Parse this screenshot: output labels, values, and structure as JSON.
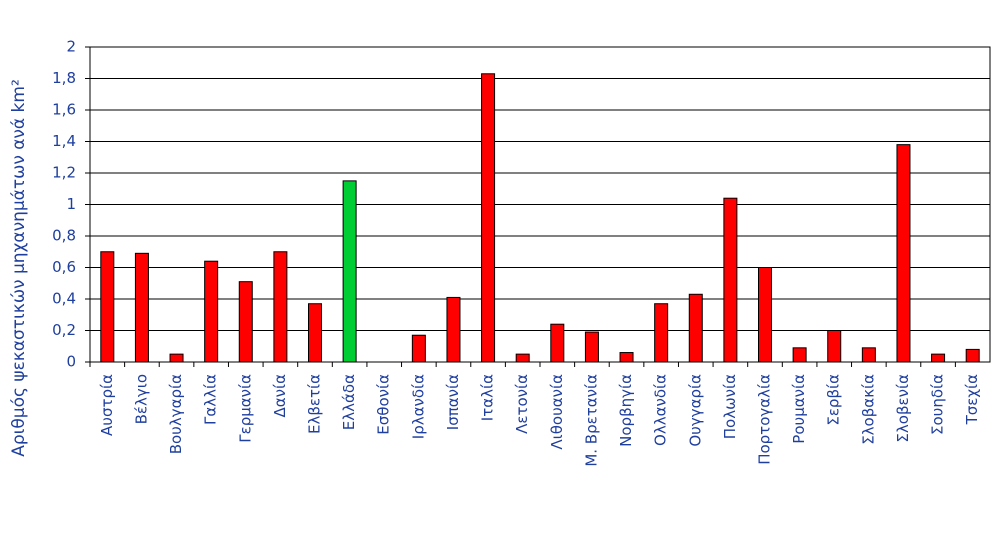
{
  "chart_data": {
    "type": "bar",
    "y_label": "Αριθμός ψεκαστικών μηχανημάτων ανά km²",
    "categories": [
      "Αυστρία",
      "Βέλγιο",
      "Βουλγαρία",
      "Γαλλία",
      "Γερμανία",
      "Δανία",
      "Ελβετία",
      "Ελλάδα",
      "Εσθονία",
      "Ιρλανδία",
      "Ισπανία",
      "Ιταλία",
      "Λετονία",
      "Λιθουανία",
      "Μ. Βρετανία",
      "Νορβηγία",
      "Ολλανδία",
      "Ουγγαρία",
      "Πολωνία",
      "Πορτογαλία",
      "Ρουμανία",
      "Σερβία",
      "Σλοβακία",
      "Σλοβενία",
      "Σουηδία",
      "Τσεχία"
    ],
    "values": [
      0.7,
      0.69,
      0.05,
      0.64,
      0.51,
      0.7,
      0.37,
      1.15,
      0,
      0.17,
      0.41,
      1.83,
      0.05,
      0.24,
      0.19,
      0.06,
      0.37,
      0.43,
      1.04,
      0.6,
      0.09,
      0.2,
      0.09,
      1.38,
      0.05,
      0.08
    ],
    "colors": [
      "#ff0000",
      "#ff0000",
      "#ff0000",
      "#ff0000",
      "#ff0000",
      "#ff0000",
      "#ff0000",
      "#00cc33",
      "#ff0000",
      "#ff0000",
      "#ff0000",
      "#ff0000",
      "#ff0000",
      "#ff0000",
      "#ff0000",
      "#ff0000",
      "#ff0000",
      "#ff0000",
      "#ff0000",
      "#ff0000",
      "#ff0000",
      "#ff0000",
      "#ff0000",
      "#ff0000",
      "#ff0000",
      "#ff0000"
    ],
    "ylim": [
      0,
      2
    ],
    "yticks": [
      0,
      {
        "value": 0.2,
        "label": "0,2"
      },
      {
        "value": 0.4,
        "label": "0,4"
      },
      {
        "value": 0.6,
        "label": "0,6"
      },
      {
        "value": 0.8,
        "label": "0,8"
      },
      1,
      {
        "value": 1.2,
        "label": "1,2"
      },
      {
        "value": 1.4,
        "label": "1,4"
      },
      {
        "value": 1.6,
        "label": "1,6"
      },
      {
        "value": 1.8,
        "label": "1,8"
      },
      2
    ],
    "grid": true
  }
}
